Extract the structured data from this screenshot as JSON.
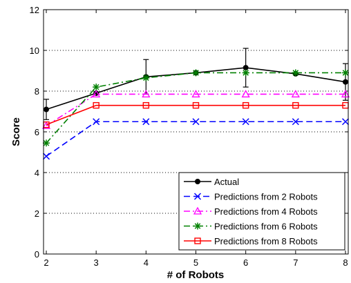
{
  "chart_data": {
    "type": "line",
    "xlabel": "# of Robots",
    "ylabel": "Score",
    "x": [
      2,
      3,
      4,
      5,
      6,
      7,
      8
    ],
    "xlim": [
      2,
      8
    ],
    "ylim": [
      0,
      12
    ],
    "xticks": [
      "2",
      "3",
      "4",
      "5",
      "6",
      "7",
      "8"
    ],
    "yticks": [
      "0",
      "2",
      "4",
      "6",
      "8",
      "10",
      "12"
    ],
    "grid": "horizontal-dotted",
    "legend_position": "bottom-right",
    "series": [
      {
        "name": "Actual",
        "color": "#000000",
        "dash": "solid",
        "marker": "dot",
        "values": [
          7.1,
          7.9,
          8.7,
          8.9,
          9.15,
          8.85,
          8.45
        ],
        "error": [
          0.5,
          null,
          0.85,
          null,
          0.95,
          null,
          0.9
        ]
      },
      {
        "name": "Predictions from 2 Robots",
        "color": "#0000ff",
        "dash": "dashed",
        "marker": "x",
        "values": [
          4.8,
          6.5,
          6.5,
          6.5,
          6.5,
          6.5,
          6.5
        ]
      },
      {
        "name": "Predictions from 4 Robots",
        "color": "#ff00ff",
        "dash": "dashdot",
        "marker": "triangle",
        "values": [
          6.3,
          7.85,
          7.85,
          7.85,
          7.85,
          7.85,
          7.85
        ]
      },
      {
        "name": "Predictions from 6 Robots",
        "color": "#008000",
        "dash": "dashdot",
        "marker": "asterisk",
        "values": [
          5.45,
          8.2,
          8.65,
          8.9,
          8.9,
          8.9,
          8.9
        ]
      },
      {
        "name": "Predictions from 8 Robots",
        "color": "#ff0000",
        "dash": "solid",
        "marker": "square",
        "values": [
          6.35,
          7.3,
          7.3,
          7.3,
          7.3,
          7.3,
          7.3
        ]
      }
    ]
  }
}
